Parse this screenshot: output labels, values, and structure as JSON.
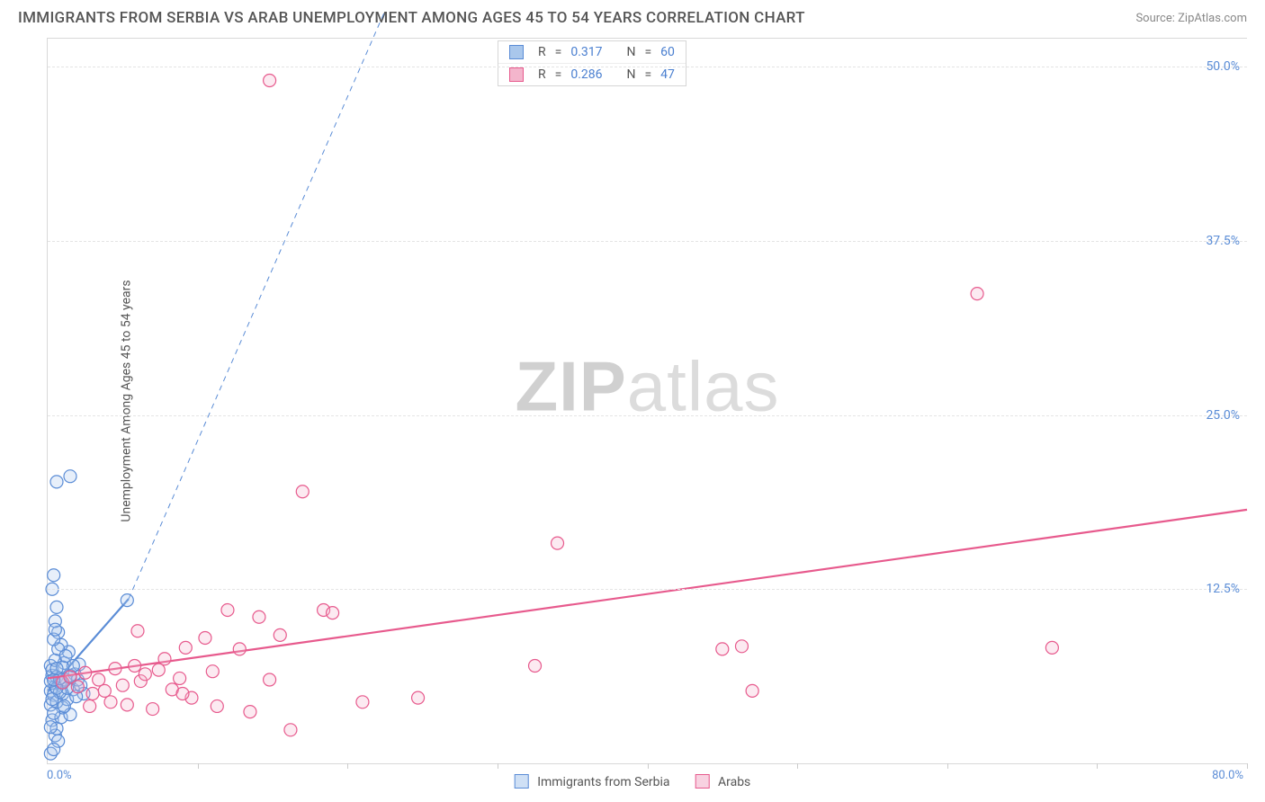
{
  "title": "IMMIGRANTS FROM SERBIA VS ARAB UNEMPLOYMENT AMONG AGES 45 TO 54 YEARS CORRELATION CHART",
  "source_label": "Source:",
  "source_value": "ZipAtlas.com",
  "ylabel": "Unemployment Among Ages 45 to 54 years",
  "watermark": {
    "part1": "ZIP",
    "part2": "atlas"
  },
  "chart": {
    "type": "scatter",
    "background_color": "#ffffff",
    "grid_color": "#e4e4e4",
    "border_color": "#d8d8d8",
    "xlim": [
      0,
      80
    ],
    "ylim": [
      0,
      52
    ],
    "x_origin_label": "0.0%",
    "x_max_label": "80.0%",
    "ytick_values": [
      12.5,
      25.0,
      37.5,
      50.0
    ],
    "ytick_labels": [
      "12.5%",
      "25.0%",
      "37.5%",
      "50.0%"
    ],
    "xtick_positions": [
      10,
      20,
      30,
      40,
      50,
      60,
      70,
      80
    ],
    "marker_radius": 7,
    "marker_stroke_width": 1.2,
    "marker_fill_opacity": 0.28,
    "series": [
      {
        "name": "Immigrants from Serbia",
        "color": "#5a8cd6",
        "fill": "#a9c7ec",
        "R": 0.317,
        "N": 60,
        "trend": {
          "x1": 0,
          "y1": 5.2,
          "x2": 5.4,
          "y2": 11.8,
          "dash_ext_x": 22.5,
          "dash_ext_y": 54,
          "width": 2.2
        },
        "points": [
          [
            0.2,
            5.2
          ],
          [
            0.3,
            6.3
          ],
          [
            0.2,
            7.0
          ],
          [
            0.5,
            5.5
          ],
          [
            0.6,
            6.2
          ],
          [
            0.4,
            4.9
          ],
          [
            0.8,
            5.8
          ],
          [
            0.2,
            4.2
          ],
          [
            0.3,
            3.1
          ],
          [
            0.5,
            2.0
          ],
          [
            0.7,
            1.6
          ],
          [
            0.2,
            0.7
          ],
          [
            0.4,
            1.0
          ],
          [
            0.6,
            2.5
          ],
          [
            0.9,
            3.3
          ],
          [
            1.0,
            5.0
          ],
          [
            1.2,
            6.0
          ],
          [
            1.1,
            7.2
          ],
          [
            1.4,
            8.0
          ],
          [
            0.9,
            8.5
          ],
          [
            0.7,
            9.4
          ],
          [
            0.5,
            10.2
          ],
          [
            0.6,
            11.2
          ],
          [
            0.3,
            12.5
          ],
          [
            0.4,
            13.5
          ],
          [
            1.0,
            4.0
          ],
          [
            1.3,
            4.6
          ],
          [
            1.5,
            3.5
          ],
          [
            1.7,
            5.3
          ],
          [
            1.8,
            6.4
          ],
          [
            2.0,
            6.0
          ],
          [
            2.1,
            7.1
          ],
          [
            2.4,
            5.0
          ],
          [
            0.6,
            20.2
          ],
          [
            1.5,
            20.6
          ],
          [
            5.3,
            11.7
          ],
          [
            0.2,
            5.9
          ],
          [
            0.3,
            6.7
          ],
          [
            0.5,
            7.4
          ],
          [
            0.7,
            8.2
          ],
          [
            0.2,
            2.6
          ],
          [
            0.4,
            3.6
          ],
          [
            0.6,
            4.4
          ],
          [
            0.8,
            5.1
          ],
          [
            0.9,
            5.8
          ],
          [
            1.1,
            4.1
          ],
          [
            1.3,
            5.4
          ],
          [
            1.5,
            6.3
          ],
          [
            1.7,
            7.0
          ],
          [
            1.9,
            4.8
          ],
          [
            2.2,
            5.6
          ],
          [
            0.4,
            8.9
          ],
          [
            0.5,
            9.6
          ],
          [
            0.3,
            4.6
          ],
          [
            0.6,
            5.4
          ],
          [
            0.8,
            6.1
          ],
          [
            1.0,
            6.9
          ],
          [
            1.2,
            7.7
          ],
          [
            0.4,
            6.0
          ],
          [
            0.6,
            6.8
          ]
        ]
      },
      {
        "name": "Arabs",
        "color": "#e75a8d",
        "fill": "#f3b5cc",
        "R": 0.286,
        "N": 47,
        "trend": {
          "x1": 0,
          "y1": 6.1,
          "x2": 80,
          "y2": 18.2,
          "width": 2.2
        },
        "points": [
          [
            1.0,
            5.8
          ],
          [
            1.5,
            6.2
          ],
          [
            2.0,
            5.5
          ],
          [
            2.5,
            6.5
          ],
          [
            2.8,
            4.1
          ],
          [
            3.0,
            5.0
          ],
          [
            3.4,
            6.0
          ],
          [
            3.8,
            5.2
          ],
          [
            4.2,
            4.4
          ],
          [
            4.5,
            6.8
          ],
          [
            5.0,
            5.6
          ],
          [
            5.3,
            4.2
          ],
          [
            5.8,
            7.0
          ],
          [
            6.2,
            5.9
          ],
          [
            6.5,
            6.4
          ],
          [
            7.0,
            3.9
          ],
          [
            7.4,
            6.7
          ],
          [
            7.8,
            7.5
          ],
          [
            8.3,
            5.3
          ],
          [
            8.8,
            6.1
          ],
          [
            9.2,
            8.3
          ],
          [
            9.6,
            4.7
          ],
          [
            10.5,
            9.0
          ],
          [
            11.3,
            4.1
          ],
          [
            12.0,
            11.0
          ],
          [
            12.8,
            8.2
          ],
          [
            13.5,
            3.7
          ],
          [
            14.1,
            10.5
          ],
          [
            14.8,
            6.0
          ],
          [
            15.5,
            9.2
          ],
          [
            16.2,
            2.4
          ],
          [
            17.0,
            19.5
          ],
          [
            18.4,
            11.0
          ],
          [
            19.0,
            10.8
          ],
          [
            21.0,
            4.4
          ],
          [
            24.7,
            4.7
          ],
          [
            32.5,
            7.0
          ],
          [
            14.8,
            49.0
          ],
          [
            34.0,
            15.8
          ],
          [
            45.0,
            8.2
          ],
          [
            46.3,
            8.4
          ],
          [
            47.0,
            5.2
          ],
          [
            62.0,
            33.7
          ],
          [
            67.0,
            8.3
          ],
          [
            6.0,
            9.5
          ],
          [
            9.0,
            5.0
          ],
          [
            11.0,
            6.6
          ]
        ]
      }
    ]
  },
  "bottom_legend": {
    "items": [
      {
        "label": "Immigrants from Serbia",
        "color": "#5a8cd6",
        "fill": "#cfe0f5"
      },
      {
        "label": "Arabs",
        "color": "#e75a8d",
        "fill": "#f8d2e1"
      }
    ]
  },
  "corr_box": {
    "R_label": "R",
    "N_label": "N",
    "eq": "="
  },
  "colors": {
    "title": "#555555",
    "axis_text": "#5a8cd6",
    "body_text": "#555555"
  },
  "fontsize": {
    "title": 17,
    "axis": 14,
    "label": 14,
    "watermark": 78
  }
}
